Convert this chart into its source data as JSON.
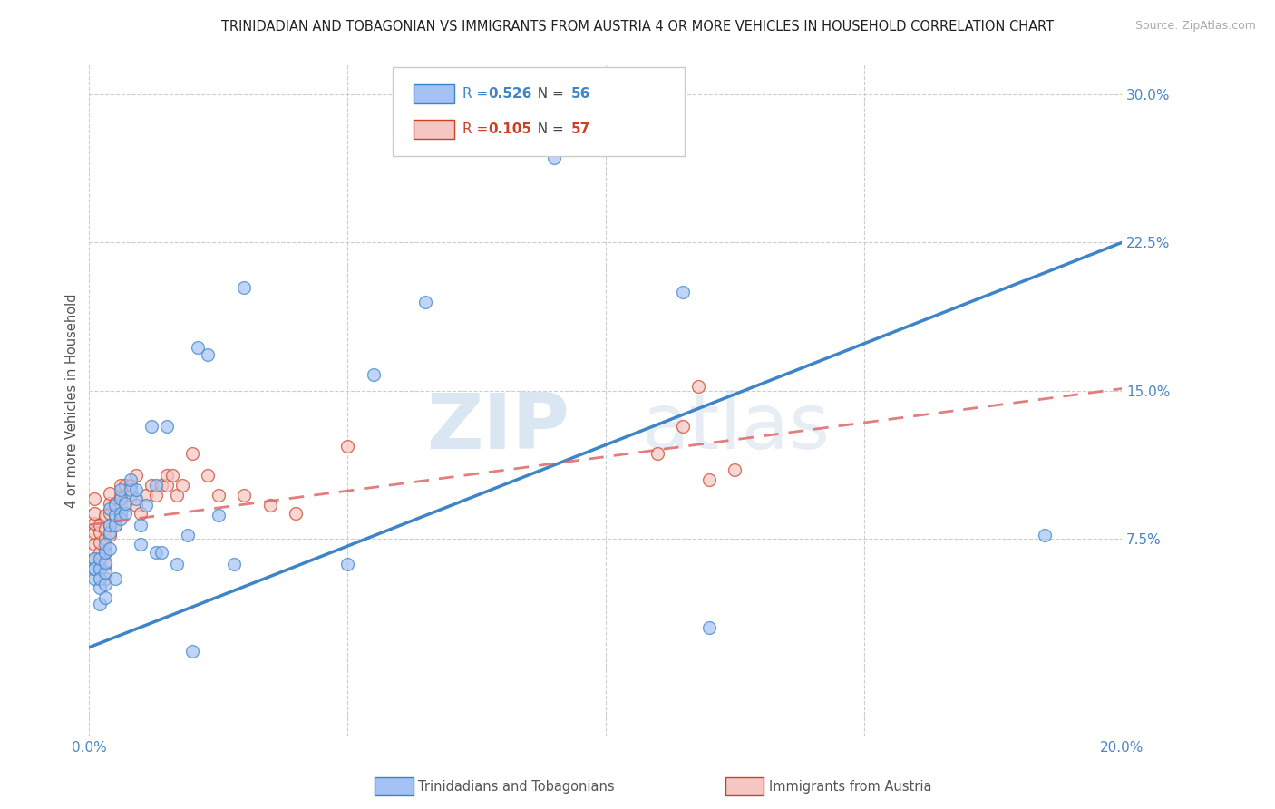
{
  "title": "TRINIDADIAN AND TOBAGONIAN VS IMMIGRANTS FROM AUSTRIA 4 OR MORE VEHICLES IN HOUSEHOLD CORRELATION CHART",
  "source": "Source: ZipAtlas.com",
  "ylabel": "4 or more Vehicles in Household",
  "xlim": [
    0.0,
    0.2
  ],
  "ylim": [
    -0.025,
    0.315
  ],
  "xtick_vals": [
    0.0,
    0.05,
    0.1,
    0.15,
    0.2
  ],
  "xtick_labels": [
    "0.0%",
    "",
    "",
    "",
    "20.0%"
  ],
  "ytick_vals": [
    0.075,
    0.15,
    0.225,
    0.3
  ],
  "ytick_labels": [
    "7.5%",
    "15.0%",
    "22.5%",
    "30.0%"
  ],
  "blue_R": "0.526",
  "blue_N": "56",
  "pink_R": "0.105",
  "pink_N": "57",
  "blue_fill": "#a4c2f4",
  "pink_fill": "#f4c7c3",
  "blue_edge": "#3d85c8",
  "pink_edge": "#cc4125",
  "blue_line": "#3d85c8",
  "pink_line": "#e06666",
  "legend_label_blue": "Trinidadians and Tobagonians",
  "legend_label_pink": "Immigrants from Austria",
  "blue_line_intercept": 0.02,
  "blue_line_slope": 1.025,
  "pink_line_intercept": 0.082,
  "pink_line_slope": 0.345,
  "blue_x": [
    0.001,
    0.001,
    0.001,
    0.001,
    0.002,
    0.002,
    0.002,
    0.002,
    0.002,
    0.003,
    0.003,
    0.003,
    0.003,
    0.003,
    0.003,
    0.004,
    0.004,
    0.004,
    0.004,
    0.005,
    0.005,
    0.005,
    0.005,
    0.006,
    0.006,
    0.006,
    0.006,
    0.007,
    0.007,
    0.008,
    0.008,
    0.009,
    0.009,
    0.01,
    0.01,
    0.011,
    0.012,
    0.013,
    0.013,
    0.014,
    0.015,
    0.017,
    0.019,
    0.02,
    0.021,
    0.023,
    0.025,
    0.028,
    0.03,
    0.05,
    0.055,
    0.065,
    0.09,
    0.115,
    0.12,
    0.185
  ],
  "blue_y": [
    0.055,
    0.06,
    0.065,
    0.06,
    0.042,
    0.05,
    0.06,
    0.055,
    0.065,
    0.045,
    0.052,
    0.058,
    0.063,
    0.068,
    0.072,
    0.07,
    0.078,
    0.082,
    0.09,
    0.082,
    0.087,
    0.092,
    0.055,
    0.095,
    0.088,
    0.085,
    0.1,
    0.088,
    0.093,
    0.1,
    0.105,
    0.095,
    0.1,
    0.072,
    0.082,
    0.092,
    0.132,
    0.102,
    0.068,
    0.068,
    0.132,
    0.062,
    0.077,
    0.018,
    0.172,
    0.168,
    0.087,
    0.062,
    0.202,
    0.062,
    0.158,
    0.195,
    0.268,
    0.2,
    0.03,
    0.077
  ],
  "pink_x": [
    0.001,
    0.001,
    0.001,
    0.001,
    0.001,
    0.001,
    0.002,
    0.002,
    0.002,
    0.002,
    0.002,
    0.003,
    0.003,
    0.003,
    0.003,
    0.003,
    0.003,
    0.004,
    0.004,
    0.004,
    0.004,
    0.004,
    0.005,
    0.005,
    0.005,
    0.006,
    0.006,
    0.006,
    0.007,
    0.007,
    0.007,
    0.008,
    0.008,
    0.009,
    0.009,
    0.01,
    0.011,
    0.012,
    0.013,
    0.014,
    0.015,
    0.015,
    0.016,
    0.017,
    0.018,
    0.02,
    0.023,
    0.025,
    0.03,
    0.035,
    0.04,
    0.05,
    0.11,
    0.115,
    0.118,
    0.12,
    0.125
  ],
  "pink_y": [
    0.065,
    0.072,
    0.078,
    0.083,
    0.088,
    0.095,
    0.062,
    0.068,
    0.073,
    0.078,
    0.082,
    0.055,
    0.062,
    0.068,
    0.075,
    0.08,
    0.087,
    0.077,
    0.082,
    0.088,
    0.093,
    0.098,
    0.082,
    0.087,
    0.093,
    0.092,
    0.097,
    0.102,
    0.092,
    0.097,
    0.102,
    0.097,
    0.102,
    0.107,
    0.092,
    0.088,
    0.097,
    0.102,
    0.097,
    0.102,
    0.102,
    0.107,
    0.107,
    0.097,
    0.102,
    0.118,
    0.107,
    0.097,
    0.097,
    0.092,
    0.088,
    0.122,
    0.118,
    0.132,
    0.152,
    0.105,
    0.11
  ],
  "watermark_zip": "ZIP",
  "watermark_atlas": "atlas",
  "background_color": "#ffffff",
  "grid_color": "#cccccc",
  "marker_size": 100
}
